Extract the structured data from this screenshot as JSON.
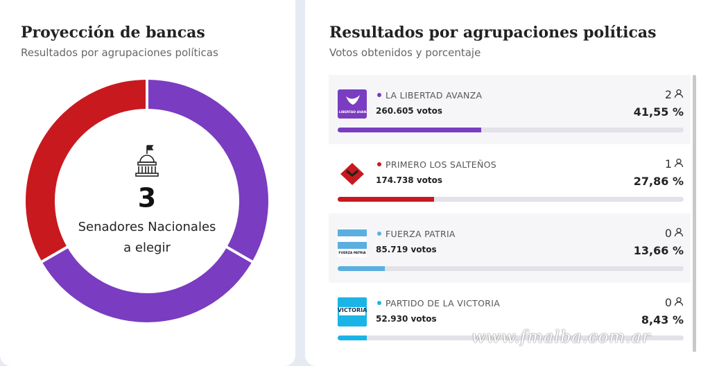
{
  "left": {
    "title": "Proyección de bancas",
    "subtitle": "Resultados por agrupaciones políticas",
    "total_seats": "3",
    "caption_line1": "Senadores Nacionales",
    "caption_line2": "a elegir"
  },
  "right": {
    "title": "Resultados por agrupaciones políticas",
    "subtitle": "Votos obtenidos y porcentaje"
  },
  "parties": [
    {
      "name": "LA LIBERTAD AVANZA",
      "logo_text": "LA LIBERTAD AVANZA",
      "votes": "260.605 votos",
      "seats": 2,
      "percent": {
        "value": 41.55,
        "label": "41,55 %"
      },
      "color": "#7a3cc0"
    },
    {
      "name": "PRIMERO LOS SALTEÑOS",
      "votes": "174.738 votos",
      "seats": 1,
      "percent": {
        "value": 27.86,
        "label": "27,86 %"
      },
      "color": "#c8191f"
    },
    {
      "name": "FUERZA PATRIA",
      "logo_text": "FUERZA PATRIA",
      "votes": "85.719 votos",
      "seats": 0,
      "percent": {
        "value": 13.66,
        "label": "13,66 %"
      },
      "color": "#5aafe0"
    },
    {
      "name": "PARTIDO DE LA VICTORIA",
      "logo_text": "VICTORIA",
      "votes": "52.930 votos",
      "seats": 0,
      "percent": {
        "value": 8.43,
        "label": "8,43 %"
      },
      "color": "#1ab4e6"
    }
  ],
  "watermark": "www.fmalba.com.ar"
}
